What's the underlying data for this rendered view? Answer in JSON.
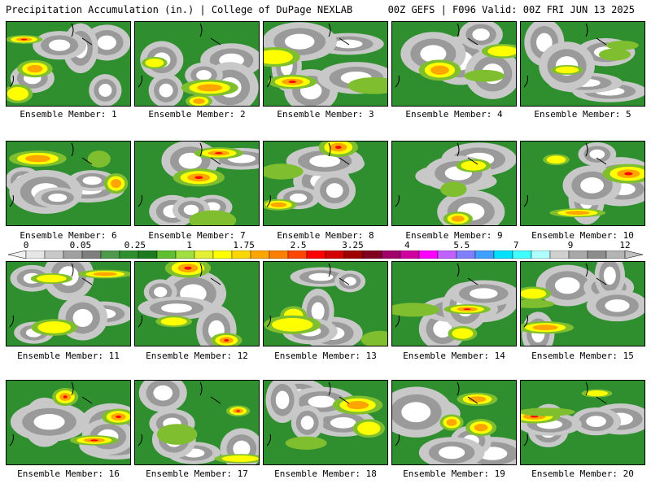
{
  "header": {
    "left_title": "Precipitation Accumulation (in.) | College of DuPage NEXLAB",
    "right_title": "00Z GEFS | F096 Valid: 00Z FRI JUN 13 2025"
  },
  "panels": [
    {
      "label": "Ensemble Member: 1"
    },
    {
      "label": "Ensemble Member: 2"
    },
    {
      "label": "Ensemble Member: 3"
    },
    {
      "label": "Ensemble Member: 4"
    },
    {
      "label": "Ensemble Member: 5"
    },
    {
      "label": "Ensemble Member: 6"
    },
    {
      "label": "Ensemble Member: 7"
    },
    {
      "label": "Ensemble Member: 8"
    },
    {
      "label": "Ensemble Member: 9"
    },
    {
      "label": "Ensemble Member: 10"
    },
    {
      "label": "Ensemble Member: 11"
    },
    {
      "label": "Ensemble Member: 12"
    },
    {
      "label": "Ensemble Member: 13"
    },
    {
      "label": "Ensemble Member: 14"
    },
    {
      "label": "Ensemble Member: 15"
    },
    {
      "label": "Ensemble Member: 16"
    },
    {
      "label": "Ensemble Member: 17"
    },
    {
      "label": "Ensemble Member: 18"
    },
    {
      "label": "Ensemble Member: 19"
    },
    {
      "label": "Ensemble Member: 20"
    }
  ],
  "colorbar": {
    "tick_labels": [
      "0",
      "0.05",
      "0.25",
      "1",
      "1.75",
      "2.5",
      "3.25",
      "4",
      "5.5",
      "7",
      "9",
      "12"
    ],
    "colors": [
      "#e6e6e6",
      "#c8c8c8",
      "#a0a0a0",
      "#7e7e7e",
      "#4d9a4d",
      "#2f8f2f",
      "#1f7a1f",
      "#5fbf2f",
      "#9fdf3f",
      "#e6f032",
      "#ffff00",
      "#ffd700",
      "#ffa500",
      "#ff7f00",
      "#ff4500",
      "#ff0000",
      "#d20000",
      "#a00000",
      "#7f0020",
      "#a0006a",
      "#d000a0",
      "#ff00ff",
      "#c060ff",
      "#8080ff",
      "#40a0ff",
      "#00e0ff",
      "#40ffff",
      "#b0ffff",
      "#d0d0d0",
      "#a8a8a8",
      "#8c8c8c",
      "#b4b4b4"
    ]
  },
  "field_colors": [
    "#ffffff",
    "#c8c8c8",
    "#9a9a9a",
    "#2f8f2f",
    "#7fbf2f",
    "#ffff00",
    "#ffa500",
    "#ff0000",
    "#8b008b"
  ]
}
